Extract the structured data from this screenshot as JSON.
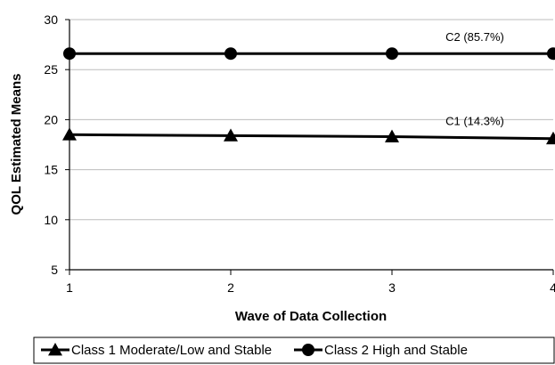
{
  "chart_data": {
    "type": "line",
    "title": "",
    "xlabel": "Wave of Data Collection",
    "ylabel": "QOL Estimated  Means",
    "x": [
      1,
      2,
      3,
      4
    ],
    "xlim": [
      1,
      4
    ],
    "ylim": [
      5,
      30
    ],
    "yticks": [
      "5",
      "10",
      "15",
      "20",
      "25",
      "30"
    ],
    "xticks": [
      "1",
      "2",
      "3",
      "4"
    ],
    "grid": "horizontal",
    "legend_position": "bottom",
    "series": [
      {
        "name": "Class 1 Moderate/Low and Stable",
        "marker": "triangle",
        "color": "#000000",
        "values": [
          18.5,
          18.4,
          18.3,
          18.1
        ]
      },
      {
        "name": "Class 2 High and Stable",
        "marker": "circle",
        "color": "#000000",
        "values": [
          26.6,
          26.6,
          26.6,
          26.6
        ]
      }
    ],
    "annotations": [
      {
        "text": "C2 (85.7%)",
        "series": 1
      },
      {
        "text": "C1 (14.3%)",
        "series": 0
      }
    ]
  }
}
